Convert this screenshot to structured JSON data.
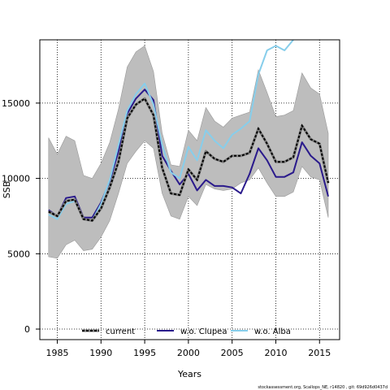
{
  "chart_data": {
    "type": "line",
    "title": "",
    "xlabel": "Years",
    "ylabel": "SSB",
    "xlim": [
      1983,
      2017.3
    ],
    "ylim": [
      -700,
      19200
    ],
    "grid": true,
    "x_ticks": [
      1985,
      1990,
      1995,
      2000,
      2005,
      2010,
      2015
    ],
    "y_ticks": [
      0,
      5000,
      10000,
      15000
    ],
    "x": [
      1984,
      1985,
      1986,
      1987,
      1988,
      1989,
      1990,
      1991,
      1992,
      1993,
      1994,
      1995,
      1996,
      1997,
      1998,
      1999,
      2000,
      2001,
      2002,
      2003,
      2004,
      2005,
      2006,
      2007,
      2008,
      2009,
      2010,
      2011,
      2012,
      2013,
      2014,
      2015,
      2016
    ],
    "band": {
      "upper": [
        12700,
        11600,
        12800,
        12500,
        10200,
        10000,
        11000,
        12400,
        14600,
        17400,
        18400,
        18800,
        17100,
        13000,
        10900,
        10800,
        13200,
        12500,
        14700,
        13800,
        13400,
        14000,
        14200,
        14400,
        17200,
        15700,
        14100,
        14200,
        14500,
        17000,
        16000,
        15600,
        13000
      ],
      "lower": [
        4800,
        4700,
        5600,
        5900,
        5200,
        5300,
        6100,
        7200,
        9000,
        11000,
        11800,
        12500,
        12000,
        9000,
        7500,
        7300,
        8800,
        8200,
        9600,
        9300,
        9200,
        9300,
        9700,
        9900,
        10700,
        9700,
        8800,
        8800,
        9100,
        10800,
        10100,
        9900,
        7400
      ]
    },
    "series": [
      {
        "name": "current",
        "color": "#000000",
        "style": "dashed",
        "values": [
          7800,
          7500,
          8500,
          8600,
          7300,
          7200,
          8000,
          9400,
          11100,
          14000,
          14900,
          15300,
          14200,
          10700,
          9000,
          8900,
          10600,
          9900,
          11800,
          11300,
          11100,
          11500,
          11500,
          11700,
          13300,
          12300,
          11100,
          11100,
          11400,
          13500,
          12600,
          12300,
          9700
        ]
      },
      {
        "name": "w.o. Clupea",
        "color": "#2a1a8c",
        "style": "solid",
        "values": [
          7900,
          7500,
          8700,
          8800,
          7400,
          7400,
          8400,
          9800,
          11800,
          14300,
          15300,
          15900,
          15200,
          11500,
          10500,
          9600,
          10300,
          9200,
          9900,
          9500,
          9500,
          9400,
          9000,
          10300,
          12000,
          11200,
          10100,
          10100,
          10400,
          12400,
          11500,
          11000,
          8800
        ]
      },
      {
        "name": "w.o. Alba",
        "color": "#87ceeb",
        "style": "solid",
        "values": [
          7600,
          7300,
          8300,
          8500,
          7300,
          7200,
          8300,
          9900,
          12200,
          14500,
          15600,
          16300,
          14900,
          12200,
          10400,
          10000,
          12100,
          11200,
          13200,
          12500,
          12000,
          12900,
          13300,
          13800,
          16900,
          18500,
          18800,
          18500,
          19200,
          null,
          null,
          null,
          null
        ]
      }
    ],
    "legend": {
      "placement": "bottom",
      "entries": [
        {
          "label": "current",
          "color": "#000000"
        },
        {
          "label": "w.o. Clupea",
          "color": "#2a1a8c"
        },
        {
          "label": "w.o. Alba",
          "color": "#87ceeb"
        }
      ]
    },
    "footer_text": "stockassessment.org, Scallops_NE, r14820 , git: 69d926d0437d"
  }
}
